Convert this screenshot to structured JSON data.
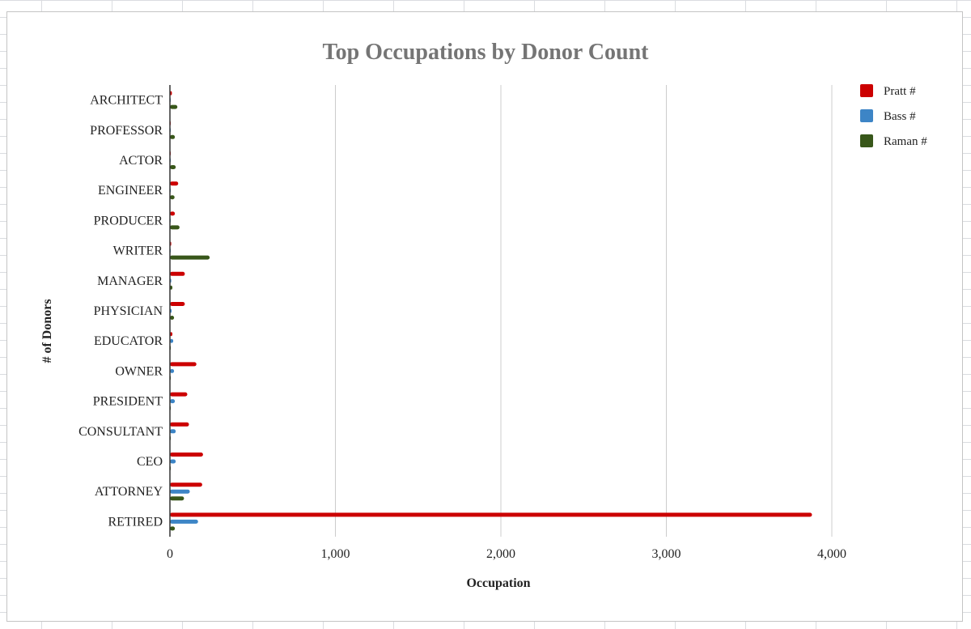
{
  "chart_data": {
    "type": "bar",
    "orientation": "horizontal",
    "title": "Top Occupations by Donor Count",
    "xlabel": "Occupation",
    "ylabel": "# of Donors",
    "categories": [
      "ARCHITECT",
      "PROFESSOR",
      "ACTOR",
      "ENGINEER",
      "PRODUCER",
      "WRITER",
      "MANAGER",
      "PHYSICIAN",
      "EDUCATOR",
      "OWNER",
      "PRESIDENT",
      "CONSULTANT",
      "CEO",
      "ATTORNEY",
      "RETIRED"
    ],
    "series": [
      {
        "name": "Pratt #",
        "color": "#cc0000",
        "values": [
          12,
          2,
          5,
          50,
          30,
          8,
          90,
          90,
          15,
          160,
          105,
          115,
          200,
          195,
          3880
        ]
      },
      {
        "name": "Bass #",
        "color": "#3d85c6",
        "values": [
          2,
          5,
          2,
          3,
          3,
          2,
          8,
          10,
          20,
          25,
          30,
          35,
          35,
          120,
          170
        ]
      },
      {
        "name": "Raman #",
        "color": "#38571a",
        "values": [
          45,
          30,
          35,
          28,
          58,
          240,
          15,
          25,
          5,
          4,
          4,
          3,
          4,
          85,
          30
        ]
      }
    ],
    "xlim": [
      0,
      4000
    ],
    "xticks": [
      0,
      1000,
      2000,
      3000,
      4000
    ],
    "xtick_labels": [
      "0",
      "1,000",
      "2,000",
      "3,000",
      "4,000"
    ],
    "grid": "vertical",
    "legend": "right"
  }
}
